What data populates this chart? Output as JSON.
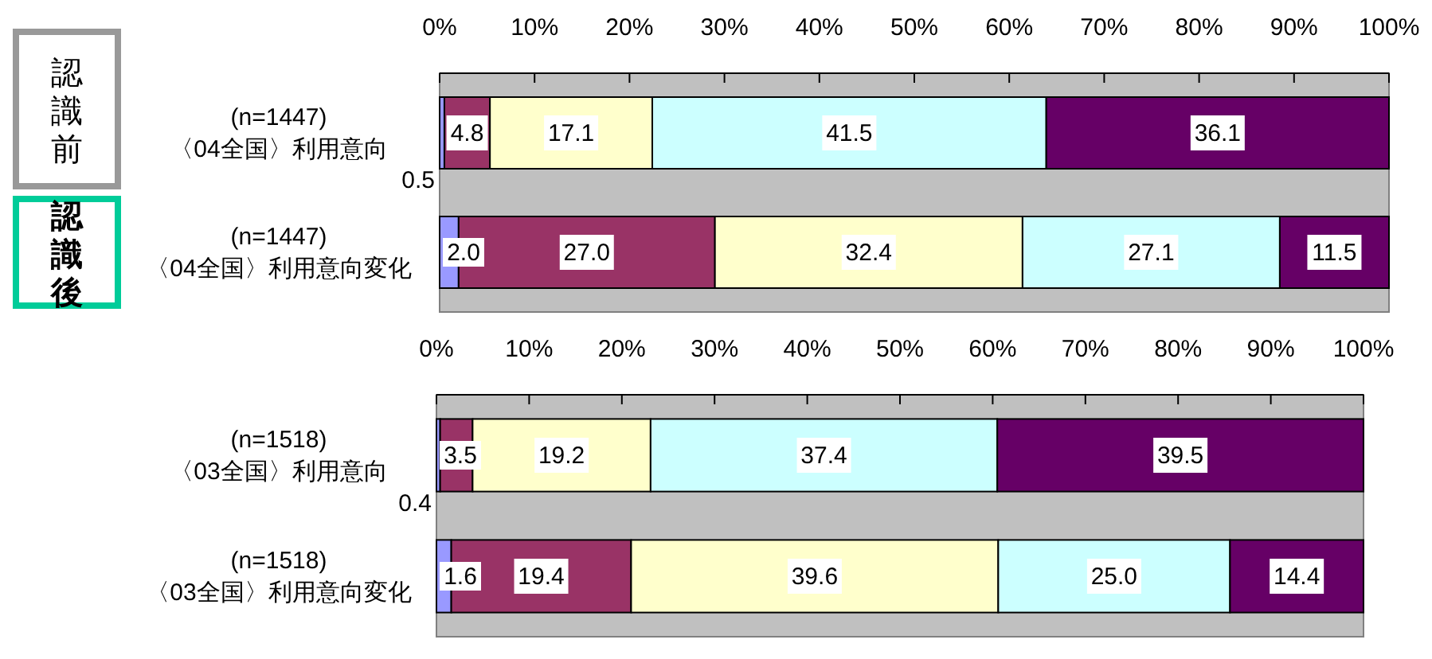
{
  "chart_data": [
    {
      "type": "bar",
      "orientation": "horizontal",
      "stacked": true,
      "grid": false,
      "categories": [
        "(n=1447)\n〈04全国〉利用意向",
        "(n=1447)\n〈04全国〉利用意向変化"
      ],
      "series": [
        {
          "color": "#9999ff",
          "values": [
            0.5,
            2.0
          ],
          "value_labels": [
            "0.5",
            "2.0"
          ]
        },
        {
          "color": "#993366",
          "values": [
            4.8,
            27.0
          ],
          "value_labels": [
            "4.8",
            "27.0"
          ]
        },
        {
          "color": "#ffffcc",
          "values": [
            17.1,
            32.4
          ],
          "value_labels": [
            "17.1",
            "32.4"
          ]
        },
        {
          "color": "#ccffff",
          "values": [
            41.5,
            27.1
          ],
          "value_labels": [
            "41.5",
            "27.1"
          ]
        },
        {
          "color": "#660066",
          "values": [
            36.1,
            11.5
          ],
          "value_labels": [
            "36.1",
            "11.5"
          ]
        }
      ],
      "xlim": [
        0,
        100
      ],
      "xticks": [
        {
          "value": 0,
          "label": "0%"
        },
        {
          "value": 10,
          "label": "10%"
        },
        {
          "value": 20,
          "label": "20%"
        },
        {
          "value": 30,
          "label": "30%"
        },
        {
          "value": 40,
          "label": "40%"
        },
        {
          "value": 50,
          "label": "50%"
        },
        {
          "value": 60,
          "label": "60%"
        },
        {
          "value": 70,
          "label": "70%"
        },
        {
          "value": 80,
          "label": "80%"
        },
        {
          "value": 90,
          "label": "90%"
        },
        {
          "value": 100,
          "label": "100%"
        }
      ],
      "annotations": [
        "認識前",
        "認識後"
      ]
    },
    {
      "type": "bar",
      "orientation": "horizontal",
      "stacked": true,
      "grid": false,
      "categories": [
        "(n=1518)\n〈03全国〉利用意向",
        "(n=1518)\n〈03全国〉利用意向変化"
      ],
      "series": [
        {
          "color": "#9999ff",
          "values": [
            0.4,
            1.6
          ],
          "value_labels": [
            "0.4",
            "1.6"
          ]
        },
        {
          "color": "#993366",
          "values": [
            3.5,
            19.4
          ],
          "value_labels": [
            "3.5",
            "19.4"
          ]
        },
        {
          "color": "#ffffcc",
          "values": [
            19.2,
            39.6
          ],
          "value_labels": [
            "19.2",
            "39.6"
          ]
        },
        {
          "color": "#ccffff",
          "values": [
            37.4,
            25.0
          ],
          "value_labels": [
            "37.4",
            "25.0"
          ]
        },
        {
          "color": "#660066",
          "values": [
            39.5,
            14.4
          ],
          "value_labels": [
            "39.5",
            "14.4"
          ]
        }
      ],
      "xlim": [
        0,
        100
      ],
      "xticks": [
        {
          "value": 0,
          "label": "0%"
        },
        {
          "value": 10,
          "label": "10%"
        },
        {
          "value": 20,
          "label": "20%"
        },
        {
          "value": 30,
          "label": "30%"
        },
        {
          "value": 40,
          "label": "40%"
        },
        {
          "value": 50,
          "label": "50%"
        },
        {
          "value": 60,
          "label": "60%"
        },
        {
          "value": 70,
          "label": "70%"
        },
        {
          "value": 80,
          "label": "80%"
        },
        {
          "value": 90,
          "label": "90%"
        },
        {
          "value": 100,
          "label": "100%"
        }
      ]
    }
  ]
}
